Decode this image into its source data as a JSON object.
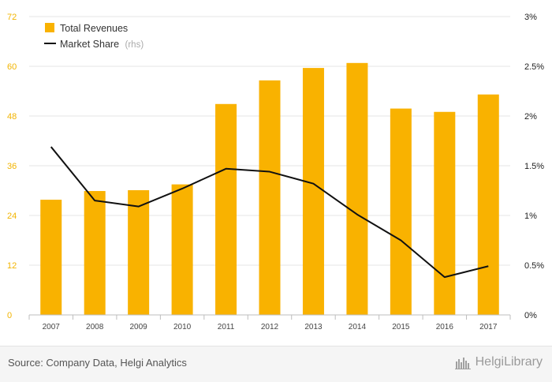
{
  "chart_data": {
    "type": "bar+line",
    "categories": [
      "2007",
      "2008",
      "2009",
      "2010",
      "2011",
      "2012",
      "2013",
      "2014",
      "2015",
      "2016",
      "2017"
    ],
    "series": [
      {
        "name": "Total Revenues",
        "type": "bar",
        "axis": "left",
        "color": "#f9b200",
        "values": [
          27.8,
          29.9,
          30.1,
          31.5,
          50.9,
          56.6,
          59.6,
          60.8,
          49.8,
          49.0,
          53.2
        ]
      },
      {
        "name": "Market Share",
        "name_suffix": "(rhs)",
        "type": "line",
        "axis": "right",
        "color": "#111111",
        "values": [
          1.69,
          1.15,
          1.09,
          1.27,
          1.47,
          1.44,
          1.32,
          1.01,
          0.75,
          0.38,
          0.49
        ]
      }
    ],
    "left_axis": {
      "ticks": [
        "0",
        "12",
        "24",
        "36",
        "48",
        "60",
        "72"
      ],
      "min": 0,
      "max": 72
    },
    "right_axis": {
      "ticks": [
        "0%",
        "0.5%",
        "1%",
        "1.5%",
        "2%",
        "2.5%",
        "3%"
      ],
      "min": 0,
      "max": 3
    },
    "legend_position": "top-left",
    "grid": true
  },
  "footer": {
    "source": "Source: Company Data, Helgi Analytics",
    "brand": "HelgiLibrary"
  }
}
